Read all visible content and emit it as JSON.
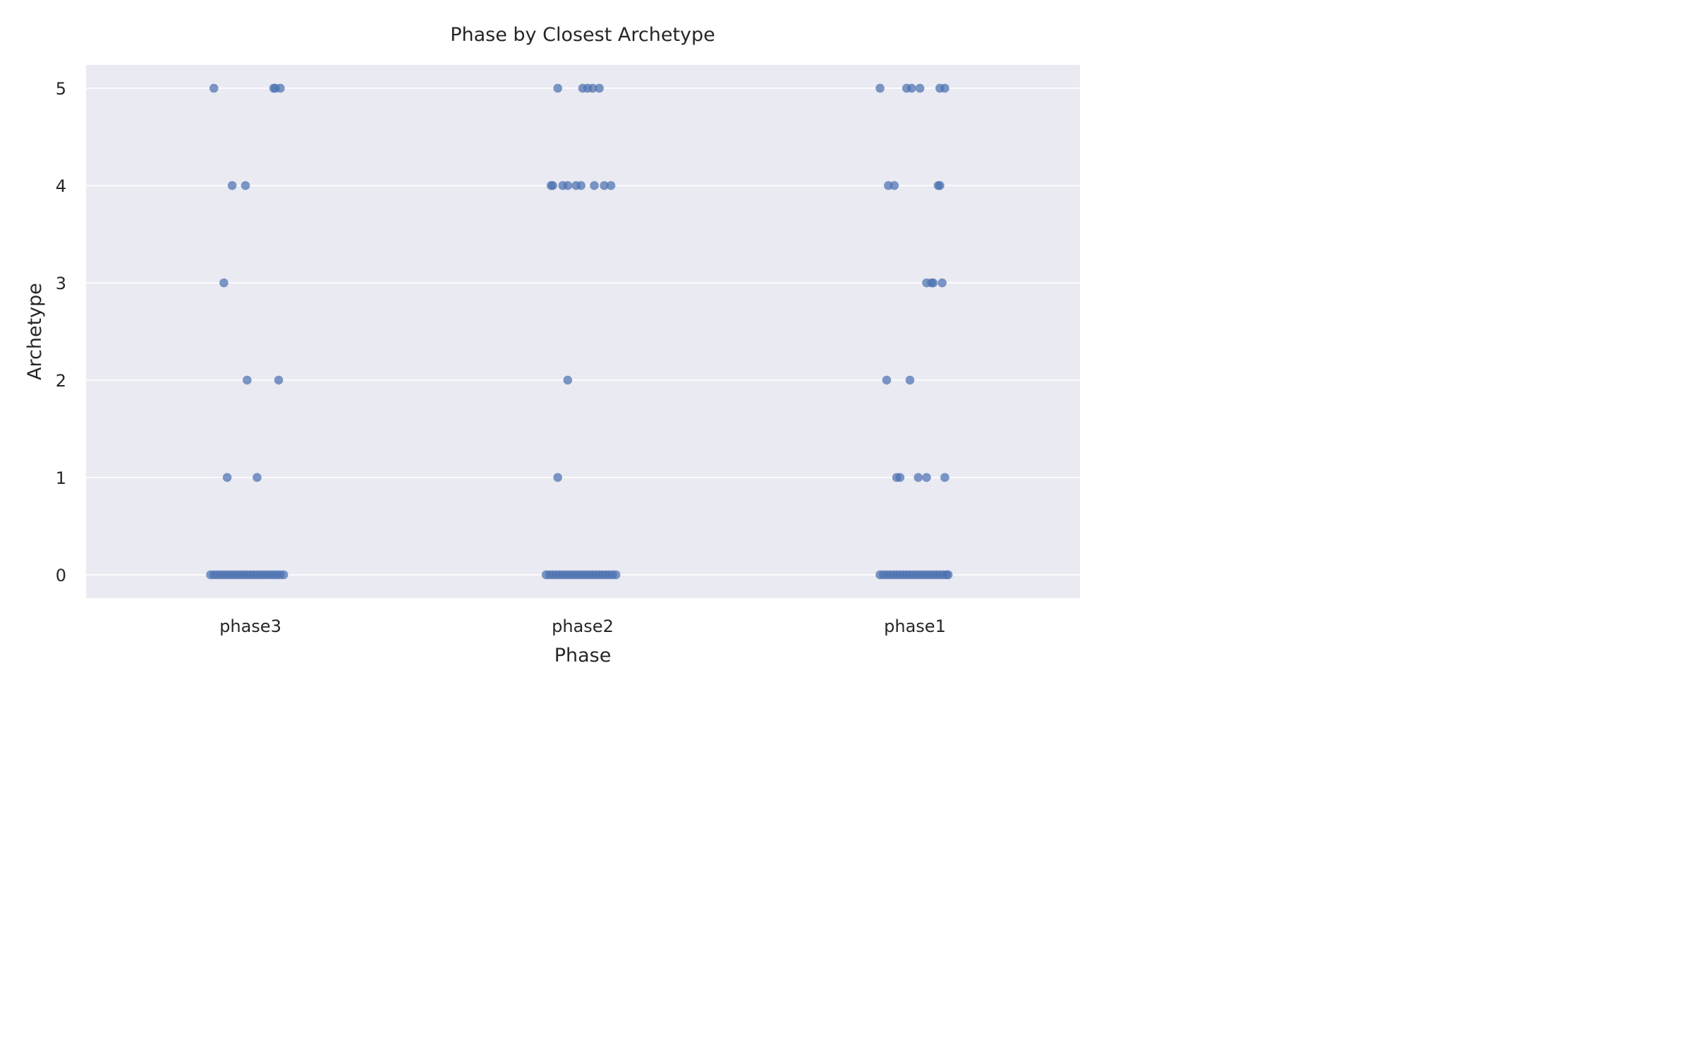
{
  "chart_data": {
    "type": "scatter",
    "title": "Phase by Closest Archetype",
    "xlabel": "Phase",
    "ylabel": "Archetype",
    "categories": [
      "phase3",
      "phase2",
      "phase1"
    ],
    "yticks": [
      "0",
      "1",
      "2",
      "3",
      "4",
      "5"
    ],
    "ylim": [
      -0.24,
      5.24
    ],
    "grid": true,
    "grid_axis": "y",
    "series_color": "#4c72b0",
    "background_color": "#eaeaf2",
    "series": [
      {
        "category": "phase3",
        "points": [
          {
            "jitter": -0.11,
            "y": 5
          },
          {
            "jitter": 0.07,
            "y": 5
          },
          {
            "jitter": 0.075,
            "y": 5
          },
          {
            "jitter": 0.09,
            "y": 5
          },
          {
            "jitter": -0.055,
            "y": 4
          },
          {
            "jitter": -0.015,
            "y": 4
          },
          {
            "jitter": -0.08,
            "y": 3
          },
          {
            "jitter": -0.01,
            "y": 2
          },
          {
            "jitter": 0.085,
            "y": 2
          },
          {
            "jitter": -0.07,
            "y": 1
          },
          {
            "jitter": 0.02,
            "y": 1
          },
          {
            "jitter": -0.12,
            "y": 0
          },
          {
            "jitter": -0.11,
            "y": 0
          },
          {
            "jitter": -0.1,
            "y": 0
          },
          {
            "jitter": -0.09,
            "y": 0
          },
          {
            "jitter": -0.08,
            "y": 0
          },
          {
            "jitter": -0.07,
            "y": 0
          },
          {
            "jitter": -0.06,
            "y": 0
          },
          {
            "jitter": -0.05,
            "y": 0
          },
          {
            "jitter": -0.04,
            "y": 0
          },
          {
            "jitter": -0.03,
            "y": 0
          },
          {
            "jitter": -0.02,
            "y": 0
          },
          {
            "jitter": -0.01,
            "y": 0
          },
          {
            "jitter": 0.0,
            "y": 0
          },
          {
            "jitter": 0.01,
            "y": 0
          },
          {
            "jitter": 0.02,
            "y": 0
          },
          {
            "jitter": 0.03,
            "y": 0
          },
          {
            "jitter": 0.04,
            "y": 0
          },
          {
            "jitter": 0.05,
            "y": 0
          },
          {
            "jitter": 0.06,
            "y": 0
          },
          {
            "jitter": 0.07,
            "y": 0
          },
          {
            "jitter": 0.08,
            "y": 0
          },
          {
            "jitter": 0.09,
            "y": 0
          },
          {
            "jitter": 0.1,
            "y": 0
          }
        ]
      },
      {
        "category": "phase2",
        "points": [
          {
            "jitter": -0.075,
            "y": 5
          },
          {
            "jitter": 0.0,
            "y": 5
          },
          {
            "jitter": 0.015,
            "y": 5
          },
          {
            "jitter": 0.03,
            "y": 5
          },
          {
            "jitter": 0.05,
            "y": 5
          },
          {
            "jitter": -0.095,
            "y": 4
          },
          {
            "jitter": -0.09,
            "y": 4
          },
          {
            "jitter": -0.06,
            "y": 4
          },
          {
            "jitter": -0.045,
            "y": 4
          },
          {
            "jitter": -0.02,
            "y": 4
          },
          {
            "jitter": -0.005,
            "y": 4
          },
          {
            "jitter": 0.035,
            "y": 4
          },
          {
            "jitter": 0.065,
            "y": 4
          },
          {
            "jitter": 0.085,
            "y": 4
          },
          {
            "jitter": -0.045,
            "y": 2
          },
          {
            "jitter": -0.075,
            "y": 1
          },
          {
            "jitter": -0.11,
            "y": 0
          },
          {
            "jitter": -0.1,
            "y": 0
          },
          {
            "jitter": -0.09,
            "y": 0
          },
          {
            "jitter": -0.08,
            "y": 0
          },
          {
            "jitter": -0.07,
            "y": 0
          },
          {
            "jitter": -0.06,
            "y": 0
          },
          {
            "jitter": -0.05,
            "y": 0
          },
          {
            "jitter": -0.04,
            "y": 0
          },
          {
            "jitter": -0.03,
            "y": 0
          },
          {
            "jitter": -0.02,
            "y": 0
          },
          {
            "jitter": -0.01,
            "y": 0
          },
          {
            "jitter": 0.0,
            "y": 0
          },
          {
            "jitter": 0.01,
            "y": 0
          },
          {
            "jitter": 0.02,
            "y": 0
          },
          {
            "jitter": 0.03,
            "y": 0
          },
          {
            "jitter": 0.04,
            "y": 0
          },
          {
            "jitter": 0.05,
            "y": 0
          },
          {
            "jitter": 0.06,
            "y": 0
          },
          {
            "jitter": 0.07,
            "y": 0
          },
          {
            "jitter": 0.08,
            "y": 0
          },
          {
            "jitter": 0.09,
            "y": 0
          },
          {
            "jitter": 0.1,
            "y": 0
          }
        ]
      },
      {
        "category": "phase1",
        "points": [
          {
            "jitter": -0.105,
            "y": 5
          },
          {
            "jitter": -0.025,
            "y": 5
          },
          {
            "jitter": -0.01,
            "y": 5
          },
          {
            "jitter": 0.015,
            "y": 5
          },
          {
            "jitter": 0.075,
            "y": 5
          },
          {
            "jitter": 0.09,
            "y": 5
          },
          {
            "jitter": -0.08,
            "y": 4
          },
          {
            "jitter": -0.062,
            "y": 4
          },
          {
            "jitter": 0.07,
            "y": 4
          },
          {
            "jitter": 0.075,
            "y": 4
          },
          {
            "jitter": 0.035,
            "y": 3
          },
          {
            "jitter": 0.05,
            "y": 3
          },
          {
            "jitter": 0.055,
            "y": 3
          },
          {
            "jitter": 0.082,
            "y": 3
          },
          {
            "jitter": -0.085,
            "y": 2
          },
          {
            "jitter": -0.015,
            "y": 2
          },
          {
            "jitter": -0.055,
            "y": 1
          },
          {
            "jitter": -0.045,
            "y": 1
          },
          {
            "jitter": 0.01,
            "y": 1
          },
          {
            "jitter": 0.035,
            "y": 1
          },
          {
            "jitter": 0.09,
            "y": 1
          },
          {
            "jitter": -0.105,
            "y": 0
          },
          {
            "jitter": -0.095,
            "y": 0
          },
          {
            "jitter": -0.085,
            "y": 0
          },
          {
            "jitter": -0.075,
            "y": 0
          },
          {
            "jitter": -0.065,
            "y": 0
          },
          {
            "jitter": -0.055,
            "y": 0
          },
          {
            "jitter": -0.045,
            "y": 0
          },
          {
            "jitter": -0.035,
            "y": 0
          },
          {
            "jitter": -0.025,
            "y": 0
          },
          {
            "jitter": -0.015,
            "y": 0
          },
          {
            "jitter": -0.005,
            "y": 0
          },
          {
            "jitter": 0.005,
            "y": 0
          },
          {
            "jitter": 0.015,
            "y": 0
          },
          {
            "jitter": 0.025,
            "y": 0
          },
          {
            "jitter": 0.035,
            "y": 0
          },
          {
            "jitter": 0.045,
            "y": 0
          },
          {
            "jitter": 0.055,
            "y": 0
          },
          {
            "jitter": 0.065,
            "y": 0
          },
          {
            "jitter": 0.075,
            "y": 0
          },
          {
            "jitter": 0.085,
            "y": 0
          },
          {
            "jitter": 0.095,
            "y": 0
          },
          {
            "jitter": 0.1,
            "y": 0
          }
        ]
      }
    ]
  }
}
